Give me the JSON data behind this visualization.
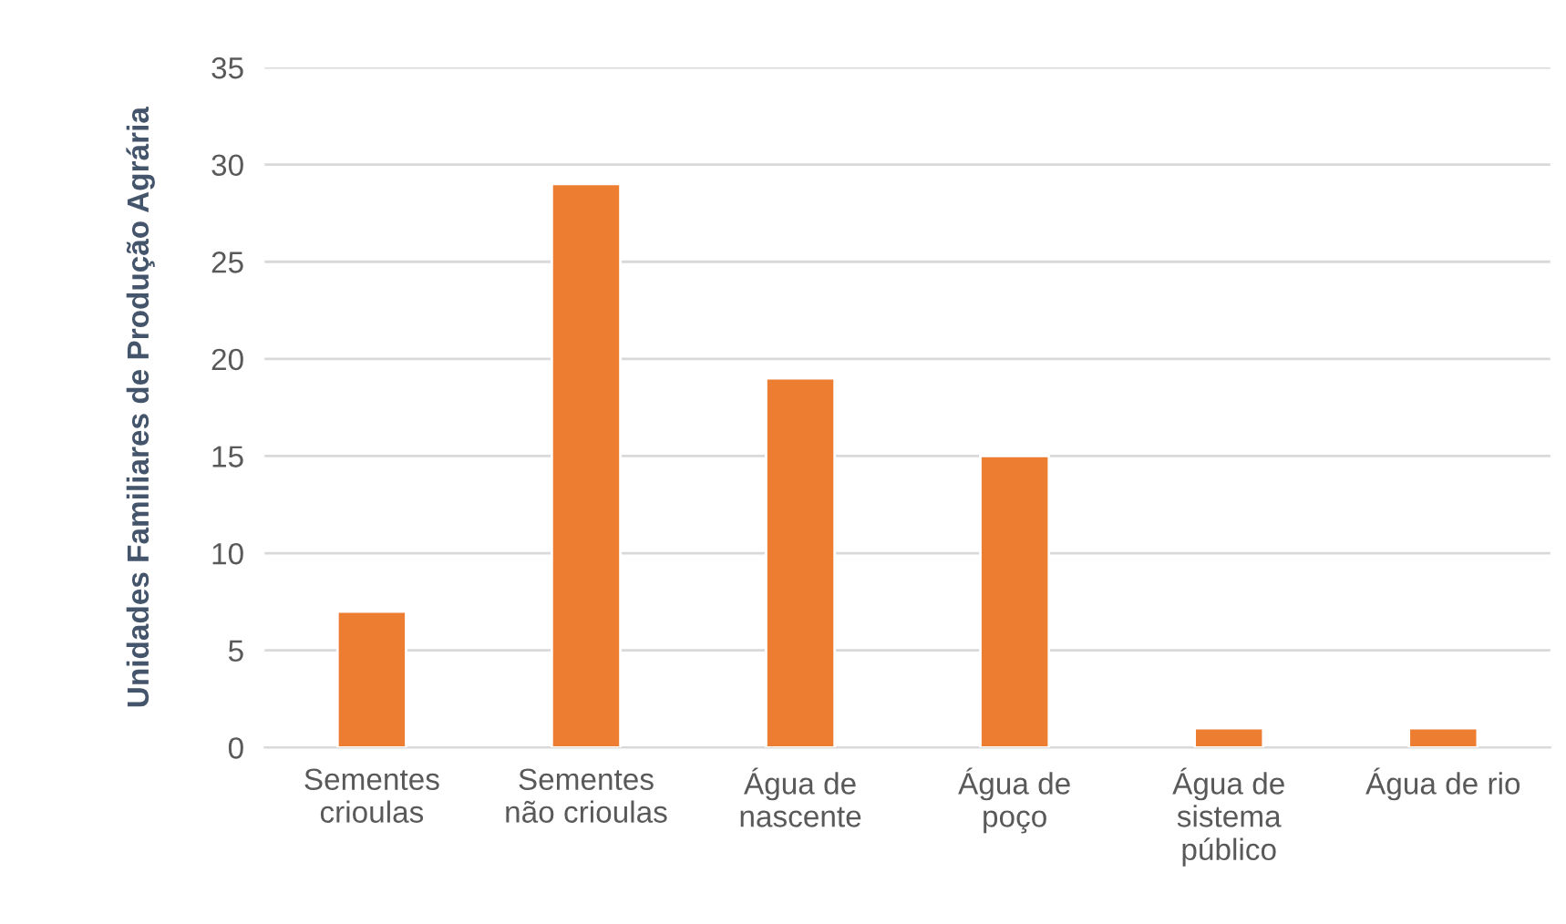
{
  "chart_data": {
    "type": "bar",
    "ylabel": "Unidades Familiares de Produção Agrária",
    "categories": [
      "Sementes\ncrioulas",
      "Sementes\nnão crioulas",
      "Água de\nnascente",
      "Água de\npoço",
      "Água de\nsistema\npúblico",
      "Água de rio"
    ],
    "values": [
      7,
      29,
      19,
      15,
      1,
      1
    ],
    "color": "#ed7d31",
    "ylim": [
      0,
      35
    ],
    "yticks": [
      0,
      5,
      10,
      15,
      20,
      25,
      30,
      35
    ],
    "grid": "y"
  }
}
